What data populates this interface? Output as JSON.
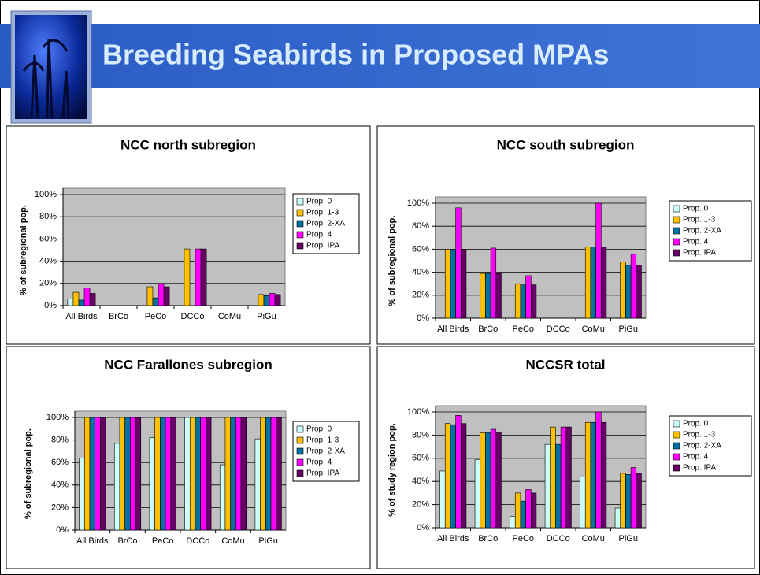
{
  "title": "Breeding Seabirds in Proposed MPAs",
  "chart_data": [
    {
      "type": "bar",
      "title": "NCC north subregion",
      "y_label": "% of subregional pop.",
      "categories": [
        "All Birds",
        "BrCo",
        "PeCo",
        "DCCo",
        "CoMu",
        "PiGu"
      ],
      "series": [
        {
          "name": "Prop. 0",
          "color": "#ccffff",
          "values": [
            6,
            0,
            0,
            0,
            0,
            0
          ]
        },
        {
          "name": "Prop. 1-3",
          "color": "#ffc000",
          "values": [
            12,
            0,
            17,
            51,
            0,
            10
          ]
        },
        {
          "name": "Prop. 2-XA",
          "color": "#0070a0",
          "values": [
            5,
            0,
            7,
            0,
            0,
            9
          ]
        },
        {
          "name": "Prop. 4",
          "color": "#ff00ff",
          "values": [
            16,
            0,
            20,
            51,
            0,
            11
          ]
        },
        {
          "name": "Prop. IPA",
          "color": "#660066",
          "values": [
            11,
            0,
            17,
            51,
            0,
            10
          ]
        }
      ],
      "ylim": [
        0,
        100
      ],
      "yticks": [
        {
          "value": 0,
          "label": "0%"
        },
        {
          "value": 20,
          "label": "20%"
        },
        {
          "value": 40,
          "label": "40%"
        },
        {
          "value": 60,
          "label": "60%"
        },
        {
          "value": 80,
          "label": "80%"
        },
        {
          "value": 100,
          "label": "100%"
        }
      ],
      "grid": true,
      "legend": "right"
    },
    {
      "type": "bar",
      "title": "NCC south subregion",
      "y_label": "% of subregional pop.",
      "categories": [
        "All Birds",
        "BrCo",
        "PeCo",
        "DCCo",
        "CoMu",
        "PiGu"
      ],
      "series": [
        {
          "name": "Prop. 0",
          "color": "#ccffff",
          "values": [
            0,
            0,
            0,
            0,
            0,
            0
          ]
        },
        {
          "name": "Prop. 1-3",
          "color": "#ffc000",
          "values": [
            60,
            39,
            30,
            0,
            62,
            49
          ]
        },
        {
          "name": "Prop. 2-XA",
          "color": "#0070a0",
          "values": [
            60,
            39,
            29,
            0,
            62,
            46
          ]
        },
        {
          "name": "Prop. 4",
          "color": "#ff00ff",
          "values": [
            96,
            61,
            37,
            0,
            100,
            56
          ]
        },
        {
          "name": "Prop. IPA",
          "color": "#660066",
          "values": [
            60,
            39,
            29,
            0,
            62,
            46
          ]
        }
      ],
      "ylim": [
        0,
        100
      ],
      "yticks": [
        {
          "value": 0,
          "label": "0%"
        },
        {
          "value": 20,
          "label": "20%"
        },
        {
          "value": 40,
          "label": "40%"
        },
        {
          "value": 60,
          "label": "60%"
        },
        {
          "value": 80,
          "label": "80%"
        },
        {
          "value": 100,
          "label": "100%"
        }
      ],
      "grid": true,
      "legend": "right"
    },
    {
      "type": "bar",
      "title": "NCC Farallones subregion",
      "y_label": "% of subregional pop.",
      "categories": [
        "All Birds",
        "BrCo",
        "PeCo",
        "DCCo",
        "CoMu",
        "PiGu"
      ],
      "series": [
        {
          "name": "Prop. 0",
          "color": "#ccffff",
          "values": [
            64,
            77,
            82,
            100,
            58,
            81
          ]
        },
        {
          "name": "Prop. 1-3",
          "color": "#ffc000",
          "values": [
            100,
            100,
            100,
            100,
            100,
            100
          ]
        },
        {
          "name": "Prop. 2-XA",
          "color": "#0070a0",
          "values": [
            100,
            100,
            100,
            100,
            100,
            100
          ]
        },
        {
          "name": "Prop. 4",
          "color": "#ff00ff",
          "values": [
            100,
            100,
            100,
            100,
            100,
            100
          ]
        },
        {
          "name": "Prop. IPA",
          "color": "#660066",
          "values": [
            100,
            100,
            100,
            100,
            100,
            100
          ]
        }
      ],
      "ylim": [
        0,
        100
      ],
      "yticks": [
        {
          "value": 0,
          "label": "0%"
        },
        {
          "value": 20,
          "label": "20%"
        },
        {
          "value": 40,
          "label": "40%"
        },
        {
          "value": 60,
          "label": "60%"
        },
        {
          "value": 80,
          "label": "80%"
        },
        {
          "value": 100,
          "label": "100%"
        }
      ],
      "grid": true,
      "legend": "right"
    },
    {
      "type": "bar",
      "title": "NCCSR total",
      "y_label": "% of study region pop.",
      "categories": [
        "All Birds",
        "BrCo",
        "PeCo",
        "DCCo",
        "CoMu",
        "PiGu"
      ],
      "series": [
        {
          "name": "Prop. 0",
          "color": "#ccffff",
          "values": [
            49,
            59,
            10,
            72,
            44,
            17
          ]
        },
        {
          "name": "Prop. 1-3",
          "color": "#ffc000",
          "values": [
            90,
            82,
            30,
            87,
            91,
            47
          ]
        },
        {
          "name": "Prop. 2-XA",
          "color": "#0070a0",
          "values": [
            89,
            82,
            23,
            72,
            91,
            46
          ]
        },
        {
          "name": "Prop. 4",
          "color": "#ff00ff",
          "values": [
            97,
            85,
            33,
            87,
            100,
            52
          ]
        },
        {
          "name": "Prop. IPA",
          "color": "#660066",
          "values": [
            90,
            82,
            30,
            87,
            91,
            47
          ]
        }
      ],
      "ylim": [
        0,
        100
      ],
      "yticks": [
        {
          "value": 0,
          "label": "0%"
        },
        {
          "value": 20,
          "label": "20%"
        },
        {
          "value": 40,
          "label": "40%"
        },
        {
          "value": 60,
          "label": "60%"
        },
        {
          "value": 80,
          "label": "80%"
        },
        {
          "value": 100,
          "label": "100%"
        }
      ],
      "grid": true,
      "legend": "right"
    }
  ]
}
